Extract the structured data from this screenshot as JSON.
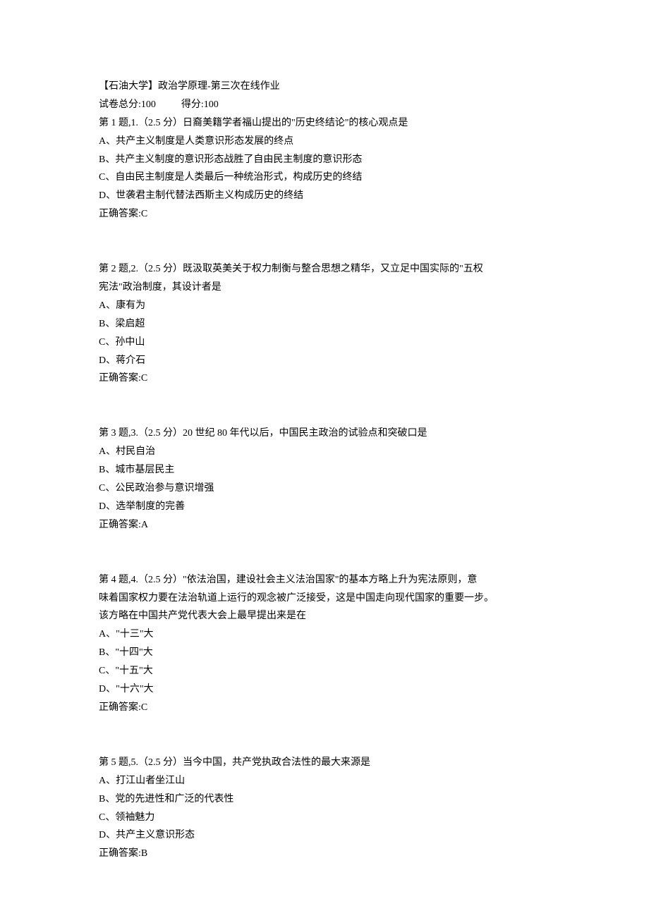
{
  "header": {
    "title": "【石油大学】政治学原理-第三次在线作业",
    "total_score_label": "试卷总分:100",
    "obtained_score_label": "得分:100"
  },
  "questions": [
    {
      "prompt": "第 1 题,1.（2.5 分）日裔美籍学者福山提出的\"历史终结论\"的核心观点是",
      "prompt_cont": [],
      "options": [
        "A、共产主义制度是人类意识形态发展的终点",
        "B、共产主义制度的意识形态战胜了自由民主制度的意识形态",
        "C、自由民主制度是人类最后一种统治形式，构成历史的终结",
        "D、世袭君主制代替法西斯主义构成历史的终结"
      ],
      "answer": "正确答案:C"
    },
    {
      "prompt": "第 2 题,2.（2.5 分）既汲取英美关于权力制衡与整合思想之精华，又立足中国实际的\"五权",
      "prompt_cont": [
        "宪法\"政治制度，其设计者是"
      ],
      "options": [
        "A、康有为",
        "B、梁启超",
        "C、孙中山",
        "D、蒋介石"
      ],
      "answer": "正确答案:C"
    },
    {
      "prompt": "第 3 题,3.（2.5 分）20 世纪 80 年代以后，中国民主政治的试验点和突破口是",
      "prompt_cont": [],
      "options": [
        "A、村民自治",
        "B、城市基层民主",
        "C、公民政治参与意识增强",
        "D、选举制度的完善"
      ],
      "answer": "正确答案:A"
    },
    {
      "prompt": "第 4 题,4.（2.5 分）\"依法治国，建设社会主义法治国家\"的基本方略上升为宪法原则，意",
      "prompt_cont": [
        "味着国家权力要在法治轨道上运行的观念被广泛接受，这是中国走向现代国家的重要一步。",
        "该方略在中国共产党代表大会上最早提出来是在"
      ],
      "options": [
        "A、\"十三\"大",
        "B、\"十四\"大",
        "C、\"十五\"大",
        "D、\"十六\"大"
      ],
      "answer": "正确答案:C"
    },
    {
      "prompt": "第 5 题,5.（2.5 分）当今中国，共产党执政合法性的最大来源是",
      "prompt_cont": [],
      "options": [
        "A、打江山者坐江山",
        "B、党的先进性和广泛的代表性",
        "C、领袖魅力",
        "D、共产主义意识形态"
      ],
      "answer": "正确答案:B"
    }
  ]
}
